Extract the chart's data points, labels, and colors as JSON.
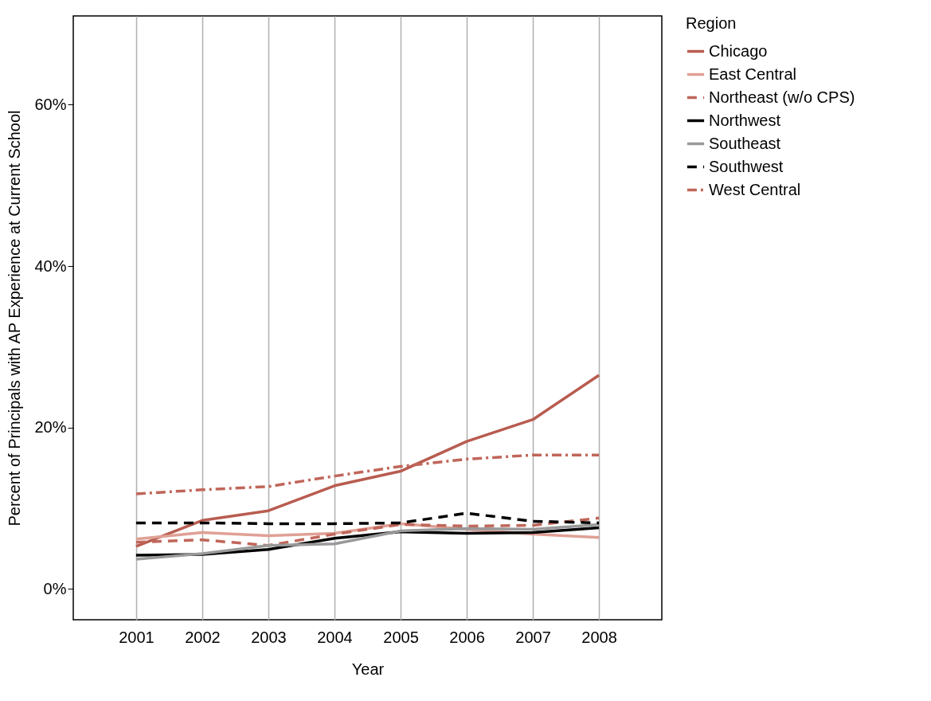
{
  "chart_data": {
    "type": "line",
    "xlabel": "Year",
    "ylabel": "Percent of Principals with AP Experience at Current School",
    "legend_title": "Region",
    "x": [
      2001,
      2002,
      2003,
      2004,
      2005,
      2006,
      2007,
      2008
    ],
    "xlim": [
      2000.05,
      2008.95
    ],
    "xticks": [
      2001,
      2002,
      2003,
      2004,
      2005,
      2006,
      2007,
      2008
    ],
    "ylim": [
      -3.8,
      71
    ],
    "yticks": [
      {
        "value": 0,
        "label": "0%"
      },
      {
        "value": 20,
        "label": "20%"
      },
      {
        "value": 40,
        "label": "40%"
      },
      {
        "value": 60,
        "label": "60%"
      }
    ],
    "grid": "x",
    "legend": "right",
    "series": [
      {
        "name": "Chicago",
        "color": "#b85c50",
        "line_style": "solid",
        "values": [
          5.3,
          8.5,
          9.7,
          12.8,
          14.6,
          18.3,
          21.0,
          26.5
        ]
      },
      {
        "name": "East Central",
        "color": "#e0a095",
        "line_style": "solid",
        "values": [
          6.2,
          7.0,
          6.6,
          6.9,
          8.1,
          7.4,
          6.8,
          6.4
        ]
      },
      {
        "name": "Northeast (w/o CPS)",
        "color": "#c0665a",
        "line_style": "dashed",
        "values": [
          5.8,
          6.1,
          5.4,
          6.8,
          8.0,
          7.8,
          7.9,
          8.8
        ]
      },
      {
        "name": "Northwest",
        "color": "#000000",
        "line_style": "solid",
        "values": [
          4.2,
          4.3,
          4.9,
          6.3,
          7.1,
          6.9,
          7.0,
          7.6
        ]
      },
      {
        "name": "Southeast",
        "color": "#999999",
        "line_style": "solid",
        "values": [
          3.7,
          4.4,
          5.4,
          5.6,
          7.2,
          7.5,
          7.4,
          8.0
        ]
      },
      {
        "name": "Southwest",
        "color": "#000000",
        "line_style": "dashed",
        "values": [
          8.2,
          8.2,
          8.1,
          8.1,
          8.2,
          9.4,
          8.4,
          8.2
        ]
      },
      {
        "name": "West Central",
        "color": "#c0665a",
        "line_style": "dashdot",
        "values": [
          11.8,
          12.3,
          12.7,
          14.0,
          15.2,
          16.1,
          16.6,
          16.6
        ]
      }
    ]
  }
}
